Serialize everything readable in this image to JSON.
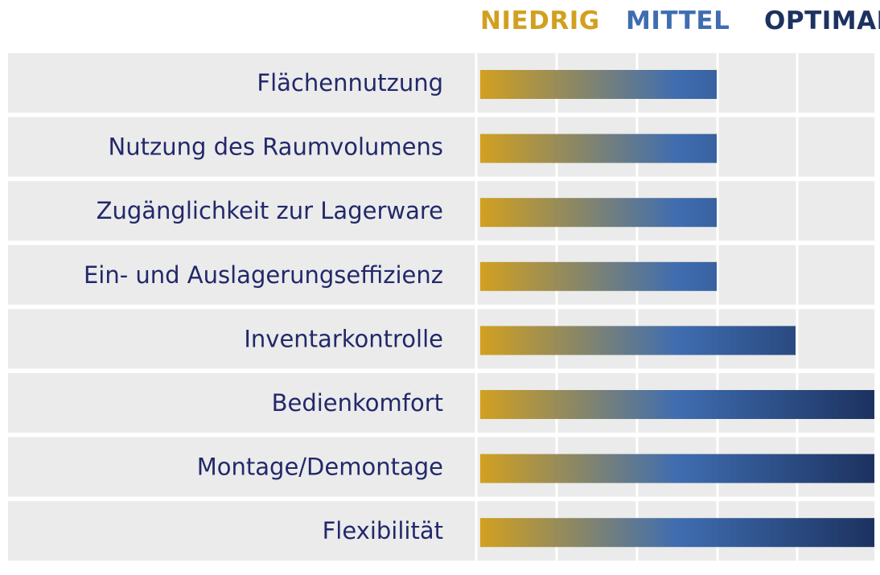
{
  "chart_data": {
    "type": "bar",
    "orientation": "horizontal",
    "legend": {
      "low": "NIEDRIG",
      "mid": "MITTEL",
      "high": "OPTIMAL"
    },
    "categories": [
      "Flächennutzung",
      "Nutzung des Raumvolumens",
      "Zugänglichkeit zur Lagerware",
      "Ein- und Auslagerungseffizienz",
      "Inventarkontrolle",
      "Bedienkomfort",
      "Montage/Demontage",
      "Flexibilität"
    ],
    "values": [
      3,
      3,
      3,
      3,
      4,
      5,
      5,
      5
    ],
    "xlim": [
      0,
      5
    ],
    "grid": true,
    "legend_placement": "top-right"
  },
  "colors": {
    "low": "#d2a020",
    "mid": "#3f6db0",
    "high": "#1c3260",
    "label": "#22286a",
    "row_bg": "#ebebeb",
    "grid": "#ffffff"
  }
}
